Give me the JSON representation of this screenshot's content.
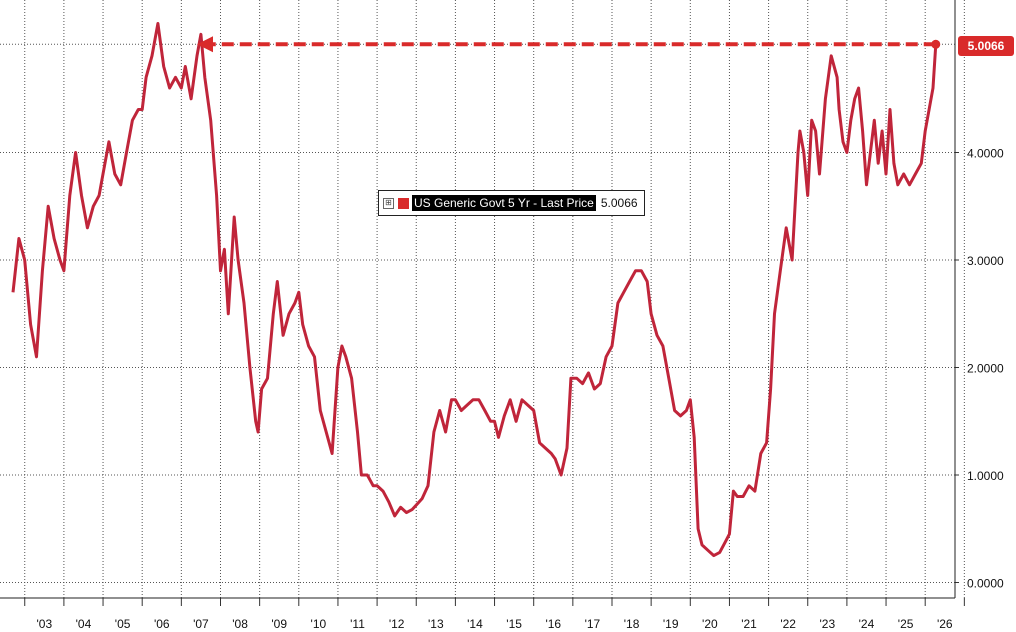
{
  "colors": {
    "series": "#c0253a",
    "annotation": "#d92a2a",
    "grid": "#555555"
  },
  "legend": {
    "expand_glyph": "⊞",
    "label": "US Generic Govt 5 Yr - Last Price",
    "value": "5.0066"
  },
  "last_value_label": "5.0066",
  "chart_data": {
    "type": "line",
    "title": "",
    "xlabel": "",
    "ylabel": "",
    "ylim": [
      -0.1,
      5.4
    ],
    "xlim": [
      2002.7,
      2026.9
    ],
    "y_ticks": [
      "0.0000",
      "1.0000",
      "2.0000",
      "3.0000",
      "4.0000"
    ],
    "x_tick_labels": [
      "'03",
      "'04",
      "'05",
      "'06",
      "'07",
      "'08",
      "'09",
      "'10",
      "'11",
      "'12",
      "'13",
      "'14",
      "'15",
      "'16",
      "'17",
      "'18",
      "'19",
      "'20",
      "'21",
      "'22",
      "'23",
      "'24",
      "'25",
      "'26"
    ],
    "grid": true,
    "legend_position": "center",
    "axis_position": "right",
    "series": [
      {
        "name": "US Generic Govt 5 Yr - Last Price",
        "x": [
          2002.7,
          2002.85,
          2003.0,
          2003.15,
          2003.3,
          2003.45,
          2003.6,
          2003.75,
          2003.9,
          2004.0,
          2004.15,
          2004.3,
          2004.45,
          2004.6,
          2004.75,
          2004.9,
          2005.0,
          2005.15,
          2005.3,
          2005.45,
          2005.6,
          2005.75,
          2005.9,
          2006.0,
          2006.1,
          2006.25,
          2006.4,
          2006.55,
          2006.7,
          2006.85,
          2007.0,
          2007.1,
          2007.25,
          2007.4,
          2007.5,
          2007.6,
          2007.75,
          2007.9,
          2008.0,
          2008.1,
          2008.2,
          2008.35,
          2008.45,
          2008.6,
          2008.75,
          2008.9,
          2008.96,
          2009.05,
          2009.2,
          2009.35,
          2009.45,
          2009.6,
          2009.75,
          2009.9,
          2010.0,
          2010.1,
          2010.25,
          2010.4,
          2010.55,
          2010.7,
          2010.85,
          2011.0,
          2011.1,
          2011.2,
          2011.35,
          2011.5,
          2011.6,
          2011.75,
          2011.9,
          2012.0,
          2012.15,
          2012.3,
          2012.45,
          2012.6,
          2012.75,
          2012.9,
          2013.0,
          2013.15,
          2013.3,
          2013.45,
          2013.6,
          2013.75,
          2013.9,
          2014.0,
          2014.15,
          2014.3,
          2014.45,
          2014.6,
          2014.75,
          2014.9,
          2015.0,
          2015.1,
          2015.25,
          2015.4,
          2015.55,
          2015.7,
          2015.85,
          2016.0,
          2016.15,
          2016.3,
          2016.45,
          2016.55,
          2016.7,
          2016.85,
          2016.95,
          2017.1,
          2017.25,
          2017.4,
          2017.55,
          2017.7,
          2017.85,
          2018.0,
          2018.15,
          2018.3,
          2018.45,
          2018.6,
          2018.75,
          2018.9,
          2019.0,
          2019.15,
          2019.3,
          2019.45,
          2019.6,
          2019.75,
          2019.9,
          2020.0,
          2020.1,
          2020.2,
          2020.3,
          2020.45,
          2020.6,
          2020.75,
          2020.9,
          2021.0,
          2021.1,
          2021.2,
          2021.35,
          2021.5,
          2021.65,
          2021.8,
          2021.95,
          2022.05,
          2022.15,
          2022.3,
          2022.45,
          2022.6,
          2022.75,
          2022.8,
          2022.9,
          2023.0,
          2023.1,
          2023.2,
          2023.3,
          2023.45,
          2023.6,
          2023.75,
          2023.8,
          2023.9,
          2024.0,
          2024.1,
          2024.2,
          2024.3,
          2024.4,
          2024.5,
          2024.6,
          2024.7,
          2024.8,
          2024.9,
          2025.0,
          2025.1,
          2025.2,
          2025.3,
          2025.45,
          2025.6,
          2025.75,
          2025.9,
          2026.0,
          2026.1,
          2026.2,
          2026.27
        ],
        "y": [
          2.7,
          3.2,
          3.0,
          2.4,
          2.1,
          2.9,
          3.5,
          3.2,
          3.0,
          2.9,
          3.6,
          4.0,
          3.6,
          3.3,
          3.5,
          3.6,
          3.8,
          4.1,
          3.8,
          3.7,
          4.0,
          4.3,
          4.4,
          4.4,
          4.7,
          4.9,
          5.2,
          4.8,
          4.6,
          4.7,
          4.6,
          4.8,
          4.5,
          4.9,
          5.1,
          4.7,
          4.3,
          3.6,
          2.9,
          3.1,
          2.5,
          3.4,
          3.0,
          2.6,
          2.0,
          1.5,
          1.4,
          1.8,
          1.9,
          2.5,
          2.8,
          2.3,
          2.5,
          2.6,
          2.7,
          2.4,
          2.2,
          2.1,
          1.6,
          1.4,
          1.2,
          2.0,
          2.2,
          2.1,
          1.9,
          1.4,
          1.0,
          1.0,
          0.9,
          0.9,
          0.85,
          0.75,
          0.62,
          0.7,
          0.65,
          0.68,
          0.72,
          0.78,
          0.9,
          1.4,
          1.6,
          1.4,
          1.7,
          1.7,
          1.6,
          1.65,
          1.7,
          1.7,
          1.6,
          1.5,
          1.5,
          1.35,
          1.55,
          1.7,
          1.5,
          1.7,
          1.65,
          1.6,
          1.3,
          1.25,
          1.2,
          1.15,
          1.0,
          1.25,
          1.9,
          1.9,
          1.85,
          1.95,
          1.8,
          1.85,
          2.1,
          2.2,
          2.6,
          2.7,
          2.8,
          2.9,
          2.9,
          2.8,
          2.5,
          2.3,
          2.2,
          1.9,
          1.6,
          1.55,
          1.6,
          1.7,
          1.35,
          0.5,
          0.35,
          0.3,
          0.25,
          0.28,
          0.38,
          0.45,
          0.85,
          0.8,
          0.8,
          0.9,
          0.85,
          1.2,
          1.3,
          1.8,
          2.5,
          2.9,
          3.3,
          3.0,
          4.0,
          4.2,
          4.0,
          3.6,
          4.3,
          4.2,
          3.8,
          4.5,
          4.9,
          4.7,
          4.4,
          4.1,
          4.0,
          4.3,
          4.5,
          4.6,
          4.2,
          3.7,
          4.0,
          4.3,
          3.9,
          4.2,
          3.8,
          4.4,
          3.9,
          3.7,
          3.8,
          3.7,
          3.8,
          3.9,
          4.2,
          4.4,
          4.6,
          5.0066
        ]
      }
    ],
    "annotations": [
      {
        "type": "dashed-arrow",
        "from_x": 2026.27,
        "to_x": 2007.4,
        "y": 5.0066
      }
    ]
  }
}
